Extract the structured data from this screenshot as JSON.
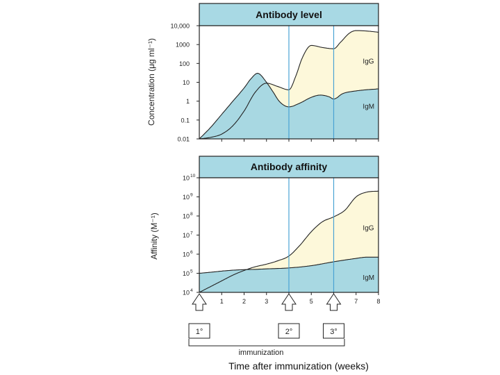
{
  "chart_data": [
    {
      "type": "area",
      "title": "Antibody level",
      "ylabel": "Concentration (μg ml⁻¹)",
      "y_scale": "log",
      "ylim": [
        0.01,
        10000
      ],
      "xlim": [
        0,
        8
      ],
      "y_ticks": [
        "0.01",
        "0.1",
        "1",
        "10",
        "100",
        "1000",
        "10,000"
      ],
      "markers_x": [
        4,
        6
      ],
      "series": [
        {
          "name": "IgM",
          "x": [
            0,
            0.5,
            1,
            1.5,
            2,
            2.3,
            2.6,
            3,
            3.3,
            3.6,
            4,
            4.5,
            5,
            5.4,
            5.8,
            6,
            6.4,
            7,
            8
          ],
          "values": [
            0.01,
            0.04,
            0.2,
            1,
            5,
            15,
            30,
            10,
            3,
            0.9,
            0.5,
            0.8,
            1.6,
            2.1,
            1.7,
            1.3,
            2.5,
            3.5,
            4.5
          ]
        },
        {
          "name": "IgG",
          "x": [
            0,
            0.5,
            1,
            1.5,
            2,
            2.5,
            3,
            3.5,
            4,
            4.3,
            4.6,
            5,
            5.5,
            6,
            6.3,
            6.7,
            7,
            7.5,
            8
          ],
          "values": [
            0.01,
            0.012,
            0.018,
            0.05,
            0.3,
            3,
            9,
            6,
            4,
            20,
            200,
            900,
            700,
            600,
            1300,
            4000,
            5500,
            5200,
            4500
          ]
        }
      ],
      "area_labels": [
        "IgG",
        "IgM"
      ]
    },
    {
      "type": "area",
      "title": "Antibody affinity",
      "ylabel": "Affinity (M⁻¹)",
      "y_scale": "log",
      "ylim": [
        10000,
        10000000000
      ],
      "xlim": [
        0,
        8
      ],
      "y_ticks": [
        "10",
        "10",
        "10",
        "10",
        "10",
        "10",
        "10"
      ],
      "y_tick_exponents": [
        "4",
        "5",
        "6",
        "7",
        "8",
        "9",
        "10"
      ],
      "x_ticks": [
        "1",
        "2",
        "3",
        "4",
        "5",
        "6",
        "7",
        "8"
      ],
      "markers_x": [
        4,
        6
      ],
      "series": [
        {
          "name": "IgM",
          "x": [
            0,
            0.5,
            1,
            1.5,
            2,
            2.5,
            3,
            4,
            5,
            6,
            7,
            7.5,
            8
          ],
          "values": [
            100000,
            113000,
            130000,
            145000,
            155000,
            160000,
            170000,
            190000,
            250000,
            400000,
            600000,
            700000,
            700000
          ]
        },
        {
          "name": "IgG",
          "x": [
            0,
            0.5,
            1,
            1.5,
            2,
            2.5,
            3,
            3.5,
            4,
            4.5,
            5,
            5.5,
            6,
            6.5,
            7,
            7.5,
            8
          ],
          "values": [
            10000,
            20000,
            40000,
            80000,
            140000,
            220000,
            300000,
            450000,
            800000,
            3000000,
            15000000,
            50000000,
            90000000,
            200000000,
            1000000000,
            1800000000,
            2000000000
          ]
        }
      ],
      "area_labels": [
        "IgG",
        "IgM"
      ]
    }
  ],
  "immunizations": [
    {
      "week": 0,
      "label": "1°"
    },
    {
      "week": 4,
      "label": "2°"
    },
    {
      "week": 6,
      "label": "3°"
    }
  ],
  "bracket_label": "immunization",
  "xlabel": "Time after immunization (weeks)",
  "colors": {
    "header": "#a8d9e4",
    "igm_fill": "#a8d8e2",
    "igg_fill": "#fdf8da",
    "early_igm": "#3a78c9",
    "marker_line": "#4aa3d4",
    "frame": "#222222"
  }
}
